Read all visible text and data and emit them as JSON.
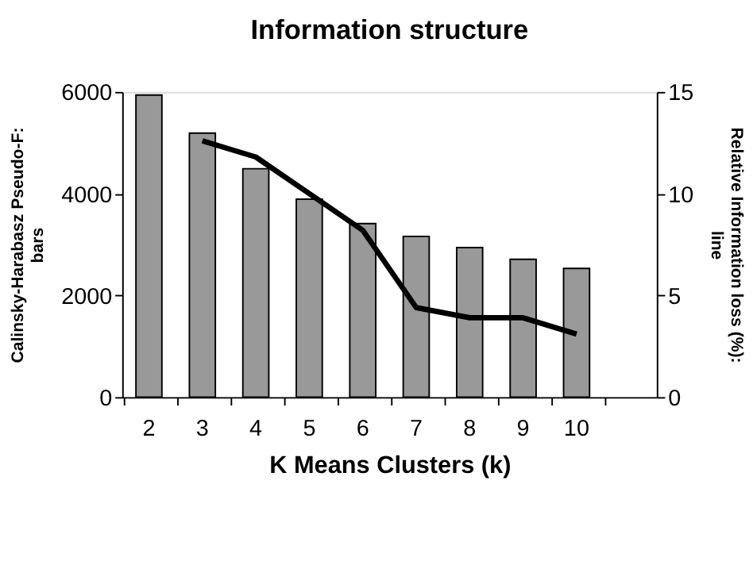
{
  "chart_data": {
    "type": "bar",
    "title": "Information structure",
    "xlabel": "K Means Clusters (k)",
    "ylabel": "Calinsky-Harabasz Pseudo-F:\nbars",
    "y2label": "Relative Information loss (%):\nline",
    "categories": [
      "2",
      "3",
      "4",
      "5",
      "6",
      "7",
      "8",
      "9",
      "10",
      null
    ],
    "series": [
      {
        "color": "#999999",
        "values": [
          5940,
          5190,
          4490,
          3890,
          3410,
          3160,
          2940,
          2710,
          2530,
          null
        ]
      },
      {
        "type": "line",
        "color": "#000000",
        "axis": "y2",
        "values": [
          null,
          12.6,
          11.8,
          10.0,
          8.2,
          4.4,
          3.9,
          3.9,
          3.1,
          null
        ]
      }
    ],
    "ylim": [
      0,
      6000
    ],
    "yticks": [
      0,
      2000,
      4000,
      6000
    ],
    "y2lim": [
      0,
      15
    ],
    "y2ticks": [
      0,
      5,
      10,
      15
    ],
    "grid": false,
    "marker": "none",
    "line_style": "solid"
  }
}
